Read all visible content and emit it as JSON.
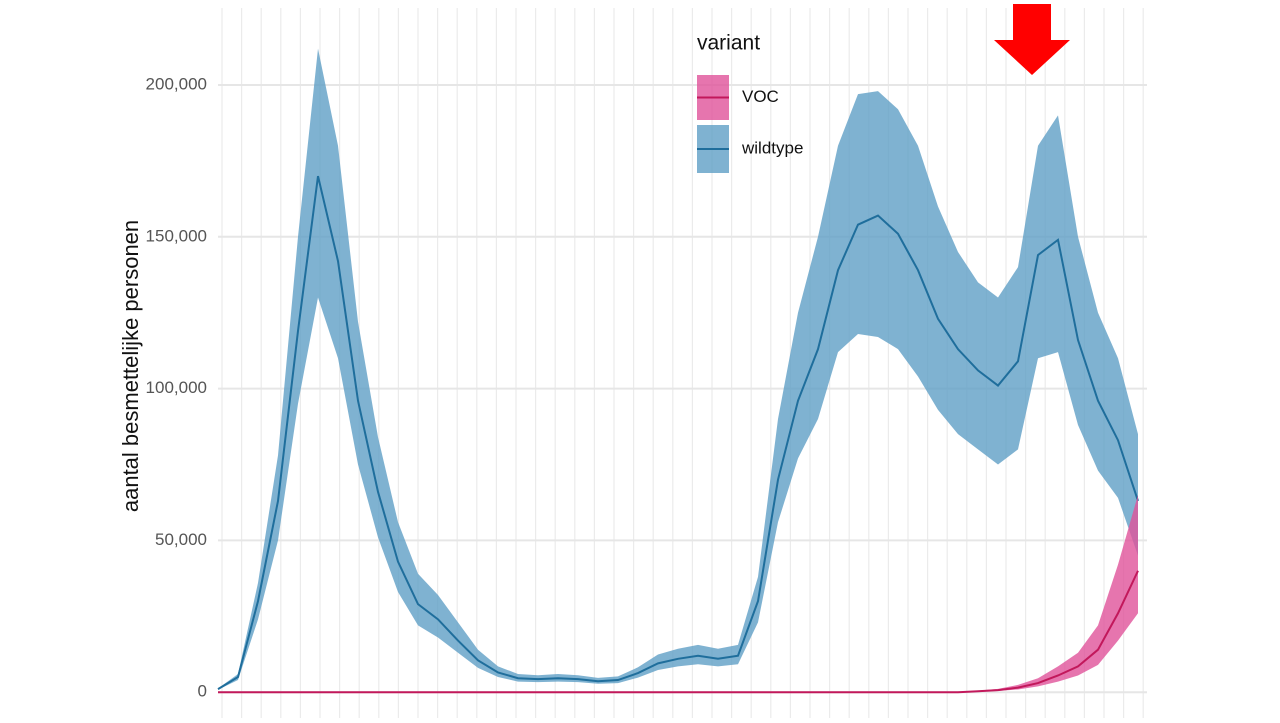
{
  "chart_data": {
    "type": "ribbon-line",
    "ylabel": "aantal besmettelijke personen",
    "legend_title": "variant",
    "categories": [
      null,
      null,
      null,
      null,
      null,
      null,
      null,
      null,
      null,
      null,
      null,
      null,
      null,
      null,
      null,
      null,
      null,
      null,
      null,
      null,
      null,
      null,
      null,
      null,
      null,
      null,
      null,
      null,
      null,
      null,
      null,
      null,
      null,
      null,
      null,
      null,
      null,
      null,
      null,
      null,
      null,
      null,
      null,
      null,
      null,
      null,
      null
    ],
    "ylim": [
      -8500,
      228000
    ],
    "yticks": [
      0,
      {
        "value": 50000,
        "label": "50,000"
      },
      {
        "value": 100000,
        "label": "100,000"
      },
      {
        "value": 150000,
        "label": "150,000"
      },
      {
        "value": 200000,
        "label": "200,000"
      }
    ],
    "grid": true,
    "series": [
      {
        "name": "VOC",
        "color": "#c2185b",
        "band_color": "#e0529a",
        "values": [
          0,
          0,
          0,
          0,
          0,
          0,
          0,
          0,
          0,
          0,
          0,
          0,
          0,
          0,
          0,
          0,
          0,
          0,
          0,
          0,
          0,
          0,
          0,
          0,
          0,
          0,
          0,
          0,
          0,
          0,
          0,
          0,
          0,
          0,
          0,
          0,
          0,
          0,
          300,
          700,
          1500,
          3000,
          5500,
          8500,
          14000,
          26000,
          40000
        ],
        "upper": [
          0,
          0,
          0,
          0,
          0,
          0,
          0,
          0,
          0,
          0,
          0,
          0,
          0,
          0,
          0,
          0,
          0,
          0,
          0,
          0,
          0,
          0,
          0,
          0,
          0,
          0,
          0,
          0,
          0,
          0,
          0,
          0,
          0,
          0,
          0,
          0,
          0,
          0,
          500,
          1100,
          2400,
          4600,
          8500,
          13000,
          22000,
          42000,
          65000
        ],
        "lower": [
          0,
          0,
          0,
          0,
          0,
          0,
          0,
          0,
          0,
          0,
          0,
          0,
          0,
          0,
          0,
          0,
          0,
          0,
          0,
          0,
          0,
          0,
          0,
          0,
          0,
          0,
          0,
          0,
          0,
          0,
          0,
          0,
          0,
          0,
          0,
          0,
          0,
          0,
          200,
          400,
          900,
          1900,
          3500,
          5500,
          9000,
          17000,
          26000
        ]
      },
      {
        "name": "wildtype",
        "color": "#1f6e9c",
        "band_color": "#5f9fc6",
        "values": [
          1000,
          5000,
          30000,
          63000,
          119000,
          170000,
          142000,
          96000,
          66000,
          43000,
          29000,
          24000,
          17000,
          10500,
          6500,
          4600,
          4300,
          4600,
          4300,
          3600,
          4000,
          6300,
          9500,
          11000,
          12000,
          11000,
          12000,
          30000,
          70000,
          96000,
          113000,
          139000,
          154000,
          157000,
          151000,
          139000,
          123000,
          113000,
          106000,
          101000,
          109000,
          144000,
          149000,
          116000,
          96000,
          83000,
          63000
        ],
        "upper": [
          1200,
          6000,
          36000,
          78000,
          150000,
          212000,
          180000,
          122000,
          84000,
          56000,
          39000,
          32000,
          23000,
          14000,
          8500,
          6000,
          5600,
          6000,
          5600,
          4700,
          5200,
          8200,
          12400,
          14300,
          15600,
          14300,
          15600,
          38000,
          90000,
          125000,
          150000,
          180000,
          197000,
          198000,
          192000,
          180000,
          160000,
          145000,
          135000,
          130000,
          140000,
          180000,
          190000,
          150000,
          125000,
          110000,
          85000
        ],
        "lower": [
          800,
          4000,
          24000,
          50000,
          95000,
          130000,
          110000,
          75000,
          51000,
          33000,
          22000,
          18000,
          13000,
          8000,
          5000,
          3500,
          3300,
          3500,
          3300,
          2800,
          3000,
          4800,
          7300,
          8500,
          9200,
          8500,
          9200,
          23000,
          56000,
          77000,
          90000,
          112000,
          118000,
          117000,
          113000,
          104000,
          93000,
          85000,
          80000,
          75000,
          80000,
          110000,
          112000,
          88000,
          73000,
          64000,
          45000
        ]
      }
    ]
  }
}
